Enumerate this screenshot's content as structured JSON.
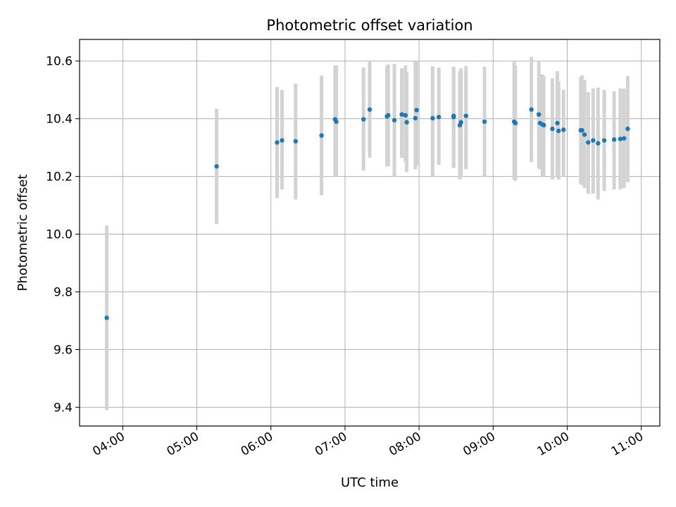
{
  "chart_data": {
    "type": "scatter",
    "title": "Photometric offset variation",
    "xlabel": "UTC time",
    "ylabel": "Photometric offset",
    "x_axis_kind": "time",
    "xlim": [
      "03:25",
      "11:15"
    ],
    "ylim": [
      9.335,
      10.675
    ],
    "x_ticks": [
      "04:00",
      "05:00",
      "06:00",
      "07:00",
      "08:00",
      "09:00",
      "10:00",
      "11:00"
    ],
    "y_ticks": [
      9.4,
      9.6,
      9.8,
      10.0,
      10.2,
      10.4,
      10.6
    ],
    "grid": true,
    "colors": {
      "point": "#1f77b4",
      "errorbar": "#d3d3d3",
      "grid": "#b0b0b0"
    },
    "points": [
      {
        "x": "03:47",
        "y": 9.71,
        "lo": 9.39,
        "hi": 10.03
      },
      {
        "x": "05:16",
        "y": 10.235,
        "lo": 10.035,
        "hi": 10.435
      },
      {
        "x": "06:05",
        "y": 10.318,
        "lo": 10.125,
        "hi": 10.51
      },
      {
        "x": "06:09",
        "y": 10.325,
        "lo": 10.155,
        "hi": 10.5
      },
      {
        "x": "06:20",
        "y": 10.322,
        "lo": 10.12,
        "hi": 10.522
      },
      {
        "x": "06:41",
        "y": 10.342,
        "lo": 10.135,
        "hi": 10.55
      },
      {
        "x": "06:52",
        "y": 10.398,
        "lo": 10.2,
        "hi": 10.585
      },
      {
        "x": "06:53",
        "y": 10.39,
        "lo": 10.2,
        "hi": 10.585
      },
      {
        "x": "07:15",
        "y": 10.398,
        "lo": 10.22,
        "hi": 10.578
      },
      {
        "x": "07:20",
        "y": 10.432,
        "lo": 10.265,
        "hi": 10.6
      },
      {
        "x": "07:34",
        "y": 10.408,
        "lo": 10.235,
        "hi": 10.583
      },
      {
        "x": "07:35",
        "y": 10.412,
        "lo": 10.235,
        "hi": 10.588
      },
      {
        "x": "07:40",
        "y": 10.395,
        "lo": 10.2,
        "hi": 10.59
      },
      {
        "x": "07:46",
        "y": 10.415,
        "lo": 10.265,
        "hi": 10.575
      },
      {
        "x": "07:49",
        "y": 10.412,
        "lo": 10.25,
        "hi": 10.585
      },
      {
        "x": "07:50",
        "y": 10.388,
        "lo": 10.215,
        "hi": 10.56
      },
      {
        "x": "07:57",
        "y": 10.402,
        "lo": 10.225,
        "hi": 10.6
      },
      {
        "x": "07:58",
        "y": 10.43,
        "lo": 10.24,
        "hi": 10.6
      },
      {
        "x": "08:11",
        "y": 10.402,
        "lo": 10.2,
        "hi": 10.582
      },
      {
        "x": "08:16",
        "y": 10.406,
        "lo": 10.24,
        "hi": 10.578
      },
      {
        "x": "08:28",
        "y": 10.41,
        "lo": 10.23,
        "hi": 10.58
      },
      {
        "x": "08:28",
        "y": 10.406,
        "lo": 10.23,
        "hi": 10.575
      },
      {
        "x": "08:33",
        "y": 10.378,
        "lo": 10.19,
        "hi": 10.565
      },
      {
        "x": "08:34",
        "y": 10.388,
        "lo": 10.2,
        "hi": 10.575
      },
      {
        "x": "08:38",
        "y": 10.41,
        "lo": 10.225,
        "hi": 10.583
      },
      {
        "x": "08:53",
        "y": 10.39,
        "lo": 10.2,
        "hi": 10.58
      },
      {
        "x": "09:17",
        "y": 10.39,
        "lo": 10.19,
        "hi": 10.598
      },
      {
        "x": "09:18",
        "y": 10.385,
        "lo": 10.185,
        "hi": 10.585
      },
      {
        "x": "09:31",
        "y": 10.432,
        "lo": 10.25,
        "hi": 10.615
      },
      {
        "x": "09:37",
        "y": 10.415,
        "lo": 10.23,
        "hi": 10.6
      },
      {
        "x": "09:38",
        "y": 10.385,
        "lo": 10.225,
        "hi": 10.555
      },
      {
        "x": "09:40",
        "y": 10.38,
        "lo": 10.2,
        "hi": 10.553
      },
      {
        "x": "09:41",
        "y": 10.378,
        "lo": 10.2,
        "hi": 10.548
      },
      {
        "x": "09:48",
        "y": 10.365,
        "lo": 10.19,
        "hi": 10.54
      },
      {
        "x": "09:52",
        "y": 10.385,
        "lo": 10.2,
        "hi": 10.565
      },
      {
        "x": "09:53",
        "y": 10.358,
        "lo": 10.19,
        "hi": 10.53
      },
      {
        "x": "09:57",
        "y": 10.362,
        "lo": 10.2,
        "hi": 10.5
      },
      {
        "x": "10:11",
        "y": 10.36,
        "lo": 10.175,
        "hi": 10.545
      },
      {
        "x": "10:12",
        "y": 10.36,
        "lo": 10.17,
        "hi": 10.55
      },
      {
        "x": "10:14",
        "y": 10.345,
        "lo": 10.16,
        "hi": 10.535
      },
      {
        "x": "10:17",
        "y": 10.318,
        "lo": 10.14,
        "hi": 10.492
      },
      {
        "x": "10:21",
        "y": 10.325,
        "lo": 10.14,
        "hi": 10.505
      },
      {
        "x": "10:25",
        "y": 10.315,
        "lo": 10.12,
        "hi": 10.508
      },
      {
        "x": "10:30",
        "y": 10.325,
        "lo": 10.15,
        "hi": 10.5
      },
      {
        "x": "10:38",
        "y": 10.328,
        "lo": 10.155,
        "hi": 10.495
      },
      {
        "x": "10:43",
        "y": 10.33,
        "lo": 10.155,
        "hi": 10.505
      },
      {
        "x": "10:46",
        "y": 10.332,
        "lo": 10.16,
        "hi": 10.505
      },
      {
        "x": "10:49",
        "y": 10.365,
        "lo": 10.18,
        "hi": 10.548
      }
    ]
  }
}
